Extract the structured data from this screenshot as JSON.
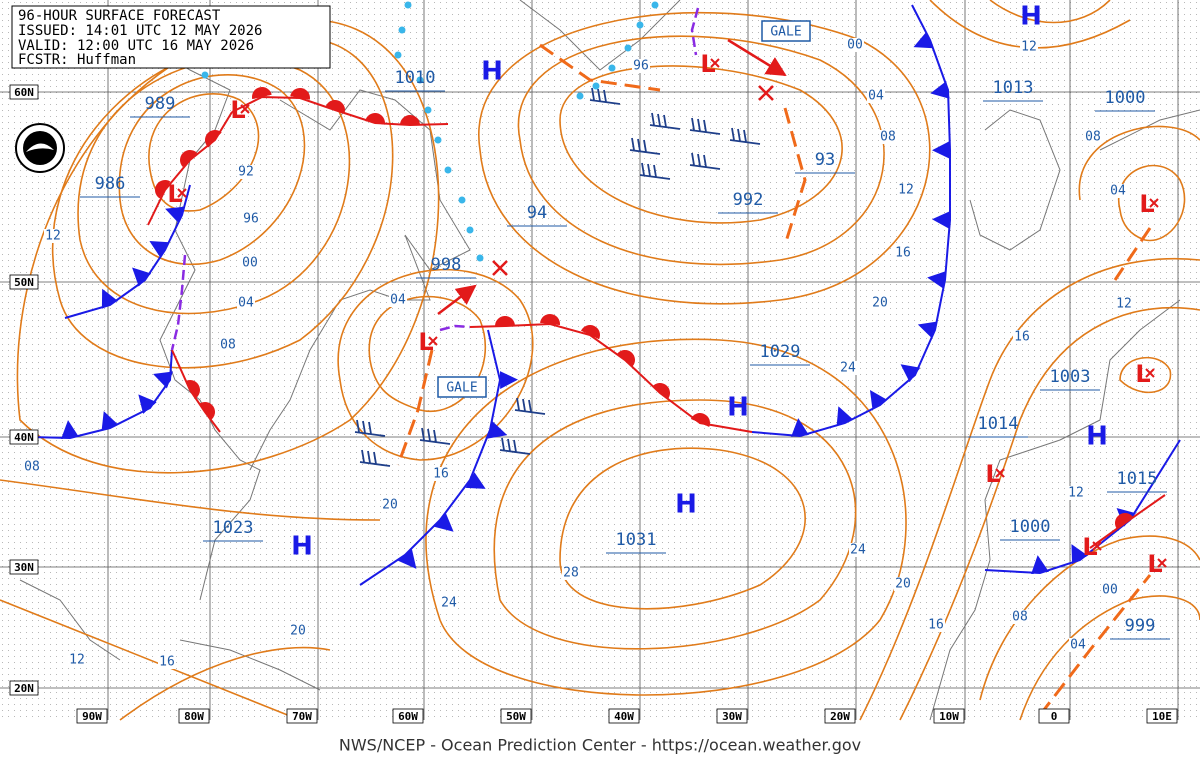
{
  "header": {
    "lines": [
      "96-HOUR SURFACE FORECAST",
      "ISSUED: 14:01 UTC 12 MAY 2026",
      "VALID:  12:00 UTC 16 MAY 2026",
      "FCSTR:  Huffman"
    ]
  },
  "latitudes": [
    "60N",
    "50N",
    "40N",
    "30N",
    "20N"
  ],
  "longitudes": [
    "90W",
    "80W",
    "70W",
    "60W",
    "50W",
    "40W",
    "30W",
    "20W",
    "10W",
    "0",
    "10E"
  ],
  "high_symbol": "H",
  "low_symbol": "L",
  "gale": "GALE",
  "pressures": [
    "989",
    "986",
    "1010",
    "1013",
    "1000",
    "94",
    "998",
    "992",
    "93",
    "1029",
    "1003",
    "1014",
    "1015",
    "1000",
    "999",
    "1023",
    "1031"
  ],
  "isobar_labels": [
    "96",
    "00",
    "04",
    "08",
    "12",
    "16",
    "20",
    "24",
    "24",
    "20",
    "16",
    "08",
    "04",
    "00",
    "12",
    "16",
    "12",
    "04",
    "08",
    "12",
    "92",
    "96",
    "00",
    "04",
    "08",
    "12",
    "08",
    "04",
    "16",
    "20",
    "24",
    "28",
    "20",
    "16",
    "12"
  ],
  "footer": "NWS/NCEP - Ocean Prediction Center - https://ocean.weather.gov"
}
